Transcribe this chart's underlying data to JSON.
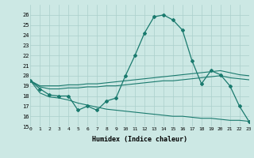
{
  "x": [
    0,
    1,
    2,
    3,
    4,
    5,
    6,
    7,
    8,
    9,
    10,
    11,
    12,
    13,
    14,
    15,
    16,
    17,
    18,
    19,
    20,
    21,
    22,
    23
  ],
  "line_main": [
    19.5,
    18.7,
    18.1,
    18.0,
    18.0,
    16.6,
    17.0,
    16.6,
    17.5,
    17.8,
    20.0,
    22.0,
    24.2,
    25.8,
    26.0,
    25.5,
    24.5,
    21.5,
    19.2,
    20.5,
    20.1,
    19.0,
    17.0,
    15.5
  ],
  "line_upper": [
    19.5,
    19.0,
    19.0,
    19.0,
    19.1,
    19.1,
    19.2,
    19.2,
    19.3,
    19.4,
    19.5,
    19.6,
    19.7,
    19.8,
    19.9,
    20.0,
    20.1,
    20.2,
    20.3,
    20.4,
    20.5,
    20.3,
    20.1,
    20.0
  ],
  "line_mid": [
    19.5,
    18.9,
    18.7,
    18.7,
    18.8,
    18.8,
    18.9,
    18.9,
    19.0,
    19.0,
    19.1,
    19.2,
    19.3,
    19.4,
    19.5,
    19.5,
    19.6,
    19.7,
    19.8,
    19.9,
    20.0,
    19.8,
    19.7,
    19.6
  ],
  "line_lower": [
    19.5,
    18.3,
    17.9,
    17.8,
    17.6,
    17.3,
    17.1,
    16.9,
    16.7,
    16.6,
    16.5,
    16.4,
    16.3,
    16.2,
    16.1,
    16.0,
    16.0,
    15.9,
    15.8,
    15.8,
    15.7,
    15.6,
    15.6,
    15.5
  ],
  "line_color": "#1a7a6e",
  "bg_color": "#cce8e4",
  "grid_color": "#aacfcb",
  "xlabel": "Humidex (Indice chaleur)",
  "ylim": [
    15,
    27
  ],
  "xlim": [
    0,
    23
  ],
  "yticks": [
    15,
    16,
    17,
    18,
    19,
    20,
    21,
    22,
    23,
    24,
    25,
    26
  ],
  "xticks": [
    0,
    1,
    2,
    3,
    4,
    5,
    6,
    7,
    8,
    9,
    10,
    11,
    12,
    13,
    14,
    15,
    16,
    17,
    18,
    19,
    20,
    21,
    22,
    23
  ]
}
